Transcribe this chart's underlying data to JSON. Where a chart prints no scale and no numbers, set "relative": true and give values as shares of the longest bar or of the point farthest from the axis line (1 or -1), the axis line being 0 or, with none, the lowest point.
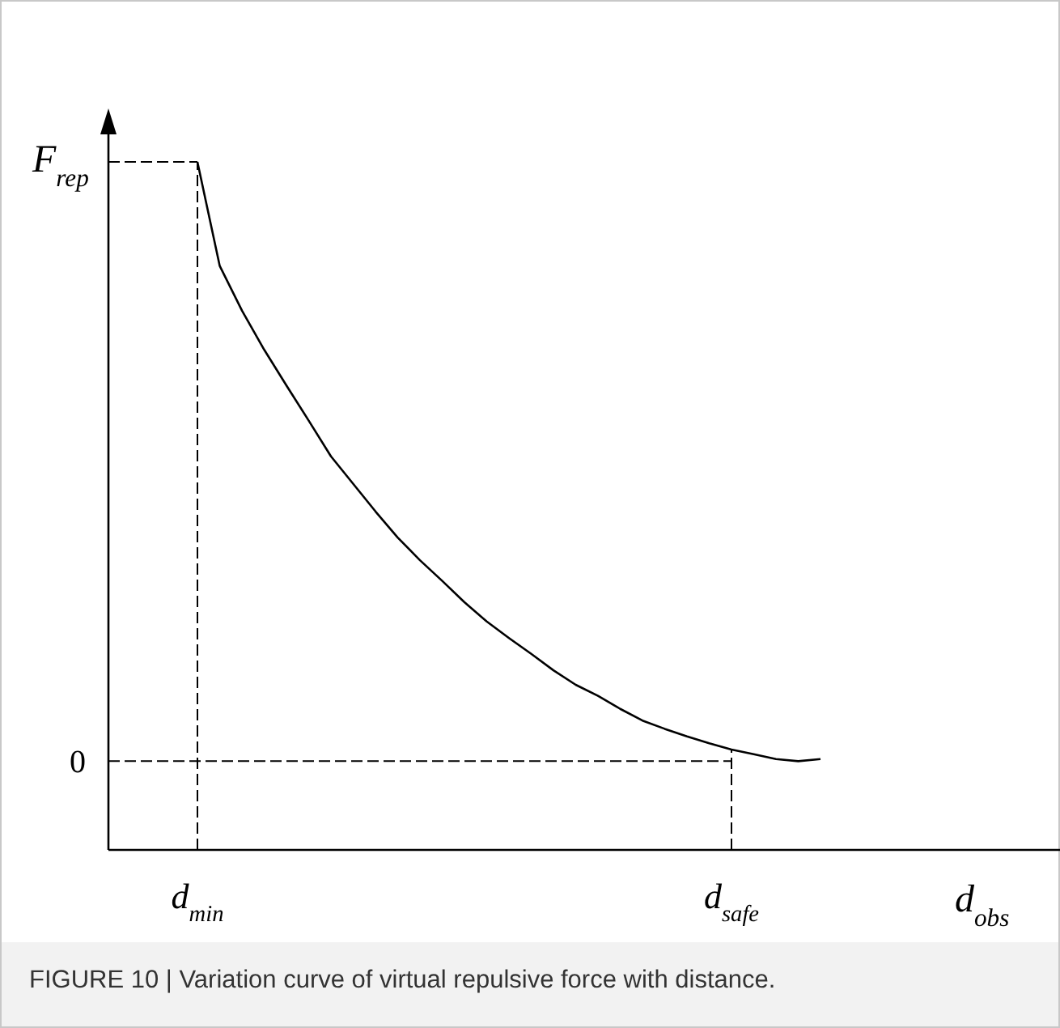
{
  "chart_data": {
    "type": "line",
    "relative": true,
    "ylabel": "F$_{rep}$",
    "xlabel": "d$_{obs}$",
    "marker": "none",
    "line_style": "solid",
    "categories": [
      null,
      null,
      null,
      null,
      "d$_{min}$",
      null,
      null,
      null,
      null,
      null,
      null,
      null,
      null,
      null,
      null,
      null,
      null,
      null,
      null,
      null,
      null,
      null,
      null,
      null,
      null,
      null,
      null,
      null,
      "d$_{safe}$",
      null,
      null,
      null,
      null
    ],
    "series": [
      {
        "color": "#000000",
        "values": [
          null,
          null,
          null,
          null,
          1,
          0.849,
          0.784,
          0.727,
          0.675,
          0.624,
          0.572,
          0.532,
          0.492,
          0.454,
          0.421,
          0.391,
          0.36,
          0.332,
          0.308,
          0.285,
          0.261,
          0.24,
          0.224,
          0.205,
          0.188,
          0.176,
          0.165,
          0.155,
          0.146,
          0.139,
          0.132,
          0.129,
          0.132
        ]
      }
    ],
    "ref_lines": [
      {
        "axis": "y",
        "value": 1,
        "label": null,
        "line_style": "dashed"
      },
      {
        "axis": "y",
        "value": 0.129,
        "label": "0",
        "line_style": "dashed"
      },
      {
        "axis": "x",
        "value": "d$_{min}$",
        "label": null,
        "line_style": "dashed"
      },
      {
        "axis": "x",
        "value": "d$_{safe}$",
        "label": null,
        "line_style": "dashed"
      }
    ],
    "annotations": [
      "FIGURE 10 | Variation curve of virtual repulsive force with distance."
    ]
  }
}
